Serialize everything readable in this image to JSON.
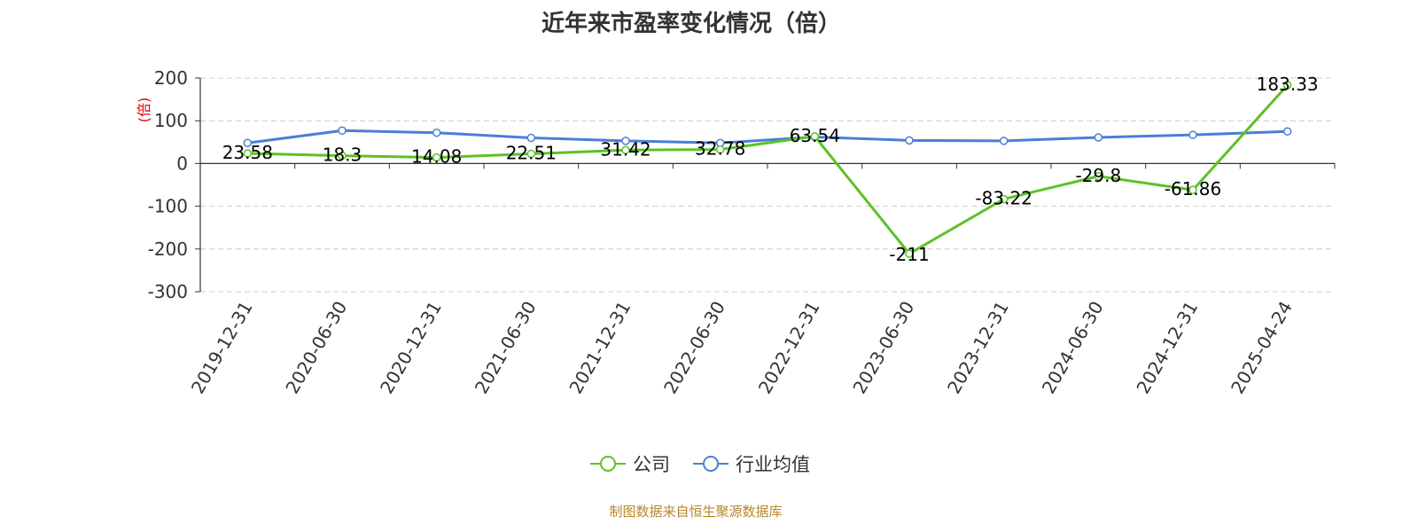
{
  "colors": {
    "company": "#5cc226",
    "industry": "#4a7fd6",
    "source_text": "#b8862b",
    "ylabel": "#e00000"
  },
  "chart_data": {
    "type": "line",
    "title": "近年来市盈率变化情况（倍）",
    "ylabel": "(倍)",
    "xlabel": "",
    "categories": [
      "2019-12-31",
      "2020-06-30",
      "2020-12-31",
      "2021-06-30",
      "2021-12-31",
      "2022-06-30",
      "2022-12-31",
      "2023-06-30",
      "2023-12-31",
      "2024-06-30",
      "2024-12-31",
      "2025-04-24"
    ],
    "ylim": [
      -300,
      200
    ],
    "yticks": [
      200,
      100,
      0,
      -100,
      -200,
      -300
    ],
    "grid": true,
    "legend_position": "bottom",
    "series": [
      {
        "name": "公司",
        "color": "#5cc226",
        "values": [
          23.58,
          18.3,
          14.08,
          22.51,
          31.42,
          32.78,
          63.54,
          -211,
          -83.22,
          -29.8,
          -61.86,
          183.33
        ],
        "labels": [
          "23.58",
          "18.3",
          "14.08",
          "22.51",
          "31.42",
          "32.78",
          "63.54",
          "-211",
          "-83.22",
          "-29.8",
          "-61.86",
          "183.33"
        ]
      },
      {
        "name": "行业均值",
        "color": "#4a7fd6",
        "values": [
          48,
          77,
          72,
          60,
          53,
          48,
          62,
          54,
          53,
          61,
          67,
          75
        ]
      }
    ]
  },
  "source": "制图数据来自恒生聚源数据库"
}
